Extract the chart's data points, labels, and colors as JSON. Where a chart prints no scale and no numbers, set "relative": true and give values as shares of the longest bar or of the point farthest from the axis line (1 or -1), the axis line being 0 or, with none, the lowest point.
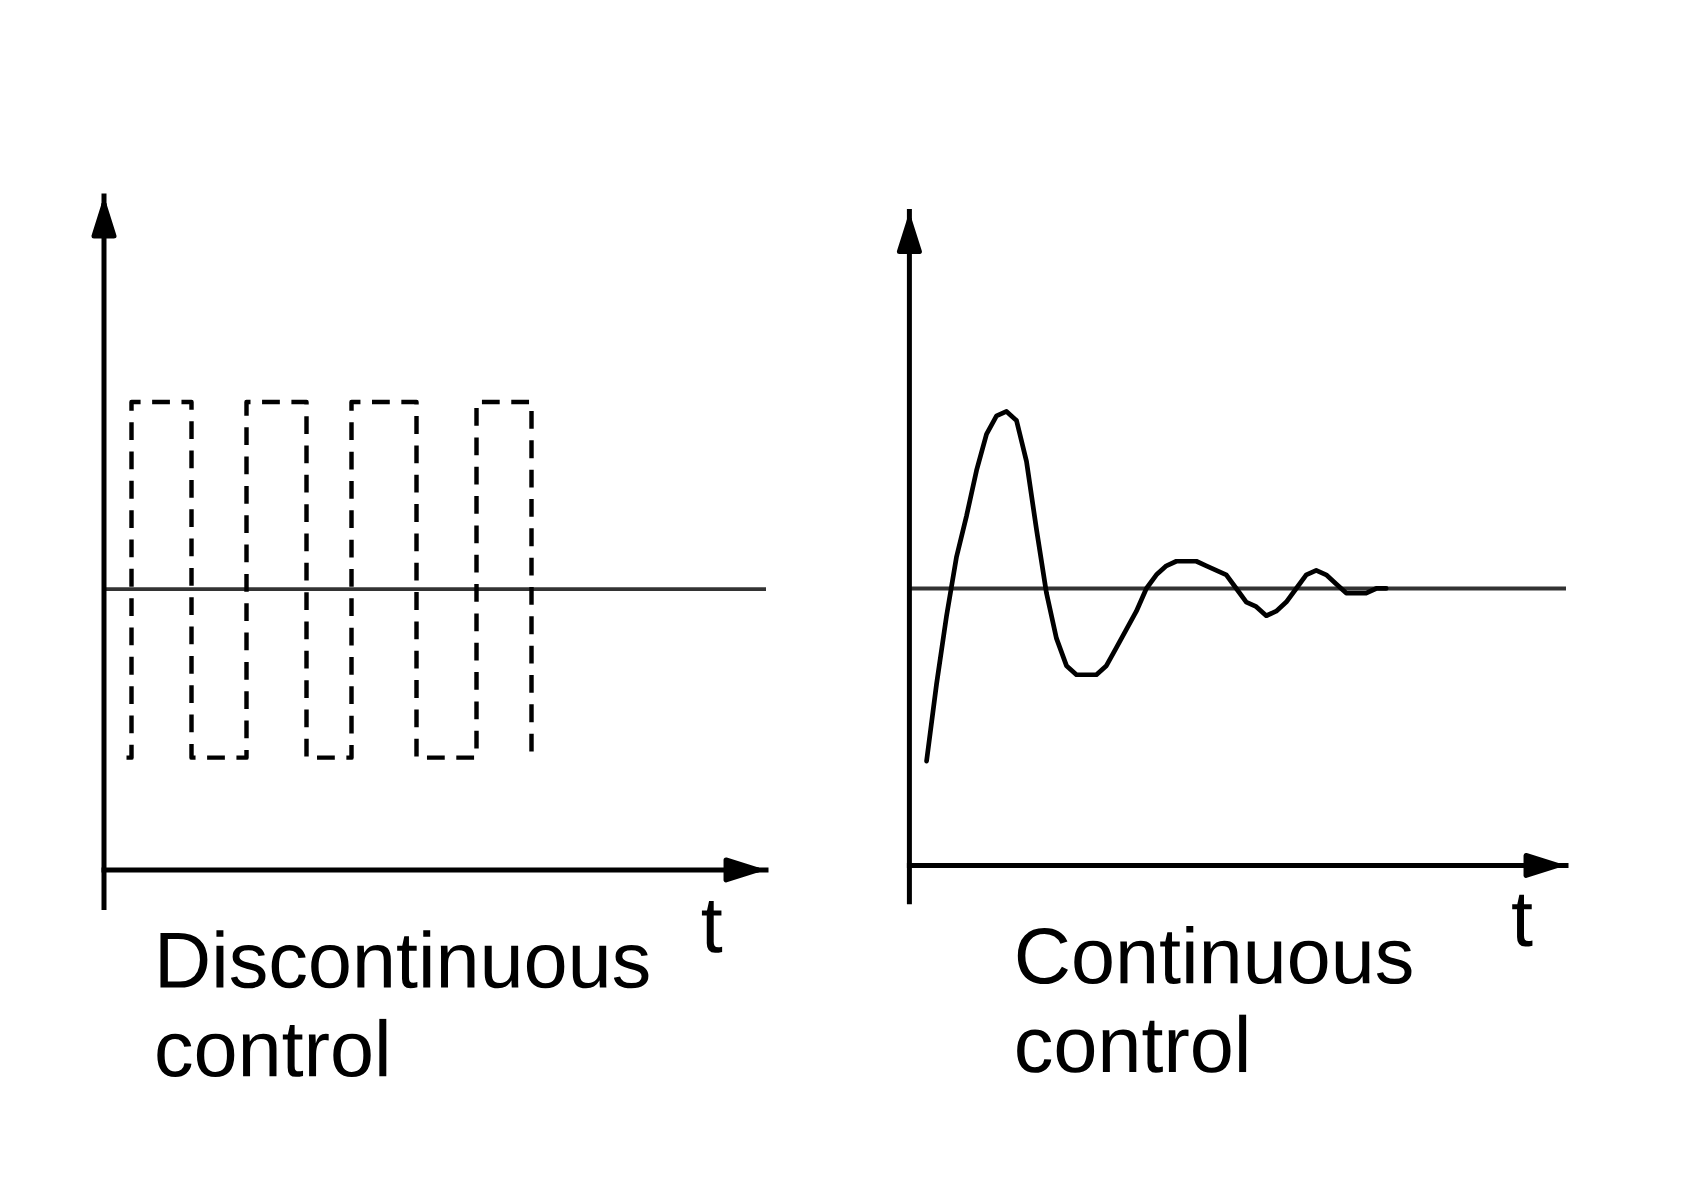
{
  "chart_data": [
    {
      "type": "step",
      "title": "Discontinuous\ncontrol",
      "xlabel": "t",
      "relative": true,
      "tick_labels": false,
      "line_style": "dashed",
      "categories": [
        null,
        null,
        null,
        null,
        null,
        null,
        null,
        null,
        null,
        null,
        null,
        null,
        null,
        null,
        null,
        null,
        null,
        null,
        null,
        null,
        null,
        null,
        null,
        null,
        null,
        null,
        null,
        null,
        null,
        null,
        null,
        null,
        null,
        null,
        null,
        null,
        null,
        null,
        null,
        null,
        null,
        null,
        null,
        null,
        null,
        null,
        null,
        null,
        null,
        null,
        null,
        null,
        null,
        null,
        null,
        null,
        null,
        null,
        null,
        null,
        null,
        null,
        null,
        null,
        null,
        null,
        null,
        null,
        null,
        null,
        null,
        null,
        null,
        null,
        null,
        null,
        null,
        null,
        null,
        null,
        null,
        null,
        null,
        null,
        null,
        null,
        null,
        null,
        null,
        null,
        null,
        null,
        null,
        null,
        null,
        null,
        null,
        null,
        null,
        null,
        null,
        null,
        null,
        null,
        null,
        null,
        null,
        null,
        null,
        null,
        null,
        null,
        null,
        null,
        null,
        null,
        null,
        null,
        null,
        null,
        null,
        null,
        null,
        null,
        null,
        null,
        null,
        null,
        null,
        null,
        null,
        null,
        null
      ],
      "series": [
        {
          "color": "#000000",
          "values": [
            null,
            null,
            null,
            null,
            null,
            0.24,
            1,
            1,
            1,
            1,
            1,
            1,
            1,
            1,
            1,
            1,
            1,
            1,
            0.24,
            0.24,
            0.24,
            0.24,
            0.24,
            0.24,
            0.24,
            0.24,
            0.24,
            0.24,
            0.24,
            1,
            1,
            1,
            1,
            1,
            1,
            1,
            1,
            1,
            1,
            1,
            1,
            0.24,
            0.24,
            0.24,
            0.24,
            0.24,
            0.24,
            0.24,
            0.24,
            0.24,
            1,
            1,
            1,
            1,
            1,
            1,
            1,
            1,
            1,
            1,
            1,
            1,
            1,
            0.24,
            0.24,
            0.24,
            0.24,
            0.24,
            0.24,
            0.24,
            0.24,
            0.24,
            0.24,
            0.24,
            0.24,
            1,
            1,
            1,
            1,
            1,
            1,
            1,
            1,
            1,
            1,
            1,
            0.24,
            null,
            null,
            null,
            null,
            null,
            null,
            null,
            null,
            null,
            null,
            null,
            null,
            null,
            null,
            null,
            null,
            null,
            null,
            null,
            null,
            null,
            null,
            null,
            null,
            null,
            null,
            null,
            null,
            null,
            null,
            null,
            null,
            null,
            null,
            null,
            null,
            null,
            null,
            null,
            null,
            null,
            null,
            null,
            null,
            null,
            null
          ]
        }
      ],
      "ref_lines": [
        {
          "axis": "y",
          "value": 0.6,
          "color": "#333333"
        }
      ]
    },
    {
      "type": "line",
      "title": "Continuous\ncontrol",
      "xlabel": "t",
      "relative": true,
      "tick_labels": false,
      "line_style": "solid",
      "categories": [
        null,
        null,
        null,
        null,
        null,
        null,
        null,
        null,
        null,
        null,
        null,
        null,
        null,
        null,
        null,
        null,
        null,
        null,
        null,
        null,
        null,
        null,
        null,
        null,
        null,
        null,
        null,
        null,
        null,
        null,
        null,
        null,
        null,
        null,
        null,
        null,
        null,
        null,
        null,
        null,
        null,
        null,
        null,
        null,
        null,
        null,
        null,
        null,
        null,
        null,
        null,
        null,
        null,
        null,
        null,
        null,
        null,
        null,
        null,
        null,
        null,
        null,
        null,
        null,
        null
      ],
      "series": [
        {
          "color": "#000000",
          "values": [
            0.23,
            0.4,
            0.55,
            0.68,
            0.77,
            0.87,
            0.95,
            0.99,
            1,
            0.98,
            0.89,
            0.74,
            0.6,
            0.5,
            0.44,
            0.42,
            0.42,
            0.42,
            0.44,
            0.48,
            0.52,
            0.56,
            0.61,
            0.64,
            0.66,
            0.67,
            0.67,
            0.67,
            0.66,
            0.65,
            0.64,
            0.61,
            0.58,
            0.57,
            0.55,
            0.56,
            0.58,
            0.61,
            0.64,
            0.65,
            0.64,
            0.62,
            0.6,
            0.6,
            0.6,
            0.61,
            0.61,
            null,
            null,
            null,
            null,
            null,
            null,
            null,
            null,
            null,
            null,
            null,
            null,
            null,
            null,
            null,
            null,
            null,
            null
          ]
        }
      ],
      "ref_lines": [
        {
          "axis": "y",
          "value": 0.61,
          "color": "#333333"
        }
      ]
    }
  ]
}
